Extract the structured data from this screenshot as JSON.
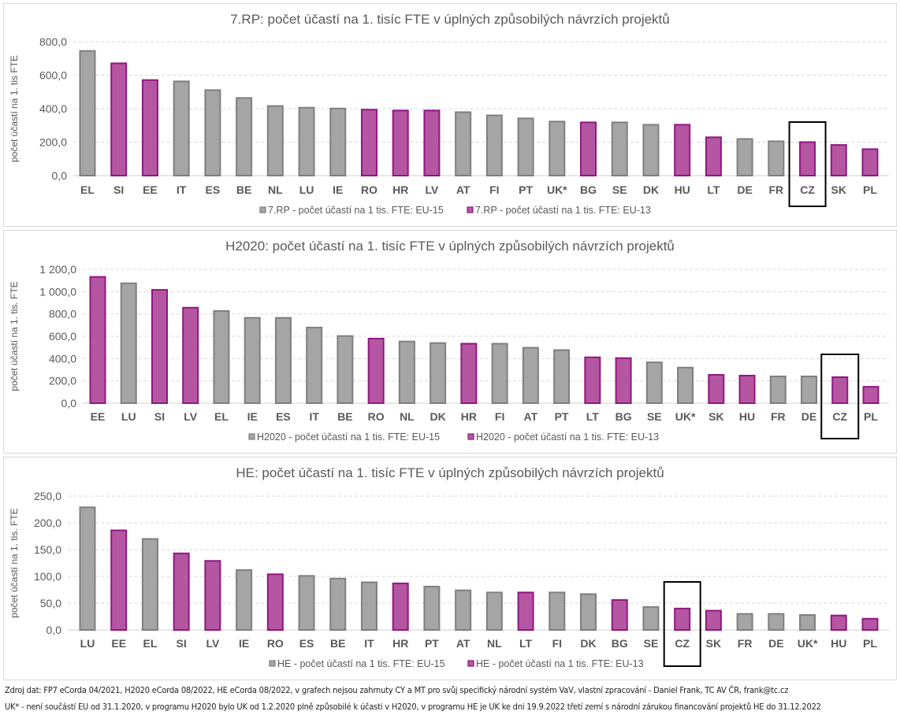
{
  "colors": {
    "eu15_fill": "#a5a5a5",
    "eu15_stroke": "#7f7f7f",
    "eu13_fill": "#b556a3",
    "eu13_stroke": "#91177f",
    "grid": "#d9d9d9",
    "text": "#595959",
    "highlight_box": "#000000"
  },
  "chart_data": [
    {
      "type": "bar",
      "title": "7.RP: počet účastí na 1. tisíc FTE v úplných způsobilých návrzích projektů",
      "xlabel": "",
      "ylabel": "počet účastí na 1. tis FTE",
      "ylim": [
        0,
        800
      ],
      "yticks": [
        0,
        200,
        400,
        600,
        800
      ],
      "ytick_labels": [
        "0,0",
        "200,0",
        "400,0",
        "600,0",
        "800,0"
      ],
      "grid": true,
      "legend_position": "bottom",
      "highlight": "CZ",
      "categories": [
        "EL",
        "SI",
        "EE",
        "IT",
        "ES",
        "BE",
        "NL",
        "LU",
        "IE",
        "RO",
        "HR",
        "LV",
        "AT",
        "FI",
        "PT",
        "UK*",
        "BG",
        "SE",
        "DK",
        "HU",
        "LT",
        "DE",
        "FR",
        "CZ",
        "SK",
        "PL"
      ],
      "groups": [
        "EU-15",
        "EU-13",
        "EU-13",
        "EU-15",
        "EU-15",
        "EU-15",
        "EU-15",
        "EU-15",
        "EU-15",
        "EU-13",
        "EU-13",
        "EU-13",
        "EU-15",
        "EU-15",
        "EU-15",
        "EU-15",
        "EU-13",
        "EU-15",
        "EU-15",
        "EU-13",
        "EU-13",
        "EU-15",
        "EU-15",
        "EU-13",
        "EU-13",
        "EU-13"
      ],
      "values": [
        745,
        671,
        571,
        563,
        511,
        464,
        416,
        406,
        401,
        394,
        389,
        389,
        379,
        360,
        342,
        323,
        318,
        318,
        304,
        304,
        229,
        219,
        205,
        200,
        183,
        158
      ],
      "series": [
        {
          "name": "7.RP - počet účastí na 1 tis. FTE: EU-15",
          "group": "EU-15"
        },
        {
          "name": "7.RP - počet účastí na 1 tis. FTE: EU-13",
          "group": "EU-13"
        }
      ]
    },
    {
      "type": "bar",
      "title": "H2020: počet účastí na 1. tisíc FTE v úplných způsobilých návrzích projektů",
      "xlabel": "",
      "ylabel": "počet účastí na 1. tis. FTE",
      "ylim": [
        0,
        1200
      ],
      "yticks": [
        0,
        200,
        400,
        600,
        800,
        1000,
        1200
      ],
      "ytick_labels": [
        "0,0",
        "200,0",
        "400,0",
        "600,0",
        "800,0",
        "1 000,0",
        "1 200,0"
      ],
      "grid": true,
      "legend_position": "bottom",
      "highlight": "CZ",
      "categories": [
        "EE",
        "LU",
        "SI",
        "LV",
        "EL",
        "IE",
        "ES",
        "IT",
        "BE",
        "RO",
        "NL",
        "DK",
        "HR",
        "FI",
        "AT",
        "PT",
        "LT",
        "BG",
        "SE",
        "UK*",
        "SK",
        "HU",
        "FR",
        "DE",
        "CZ",
        "PL"
      ],
      "groups": [
        "EU-13",
        "EU-15",
        "EU-13",
        "EU-13",
        "EU-15",
        "EU-15",
        "EU-15",
        "EU-15",
        "EU-15",
        "EU-13",
        "EU-15",
        "EU-15",
        "EU-13",
        "EU-15",
        "EU-15",
        "EU-15",
        "EU-13",
        "EU-13",
        "EU-15",
        "EU-15",
        "EU-13",
        "EU-13",
        "EU-15",
        "EU-15",
        "EU-13",
        "EU-13"
      ],
      "values": [
        1132,
        1075,
        1016,
        856,
        826,
        765,
        765,
        678,
        602,
        579,
        553,
        539,
        533,
        533,
        497,
        476,
        411,
        404,
        366,
        319,
        254,
        247,
        240,
        240,
        233,
        147
      ],
      "series": [
        {
          "name": "H2020 - počet účastí na 1 tis. FTE: EU-15",
          "group": "EU-15"
        },
        {
          "name": "H2020 - počet účastí na 1 tis. FTE: EU-13",
          "group": "EU-13"
        }
      ]
    },
    {
      "type": "bar",
      "title": "HE: počet účastí na 1. tisíc FTE v úplných způsobilých návrzích projektů",
      "xlabel": "",
      "ylabel": "počet účastí na 1. tis. FTE",
      "ylim": [
        0,
        250
      ],
      "yticks": [
        0,
        50,
        100,
        150,
        200,
        250
      ],
      "ytick_labels": [
        "0,0",
        "50,0",
        "100,0",
        "150,0",
        "200,0",
        "250,0"
      ],
      "grid": true,
      "legend_position": "bottom",
      "highlight": "CZ",
      "categories": [
        "LU",
        "EE",
        "EL",
        "SI",
        "LV",
        "IE",
        "RO",
        "ES",
        "BE",
        "IT",
        "HR",
        "PT",
        "AT",
        "NL",
        "LT",
        "FI",
        "DK",
        "BG",
        "SE",
        "CZ",
        "SK",
        "FR",
        "DE",
        "UK*",
        "HU",
        "PL"
      ],
      "groups": [
        "EU-15",
        "EU-13",
        "EU-15",
        "EU-13",
        "EU-13",
        "EU-15",
        "EU-13",
        "EU-15",
        "EU-15",
        "EU-15",
        "EU-13",
        "EU-15",
        "EU-15",
        "EU-15",
        "EU-13",
        "EU-15",
        "EU-15",
        "EU-13",
        "EU-15",
        "EU-13",
        "EU-13",
        "EU-15",
        "EU-15",
        "EU-15",
        "EU-13",
        "EU-13"
      ],
      "values": [
        229,
        186,
        170,
        143,
        129,
        112,
        104,
        101,
        96,
        89,
        87,
        81,
        74,
        70,
        70,
        70,
        67,
        56,
        43,
        40,
        36,
        30,
        30,
        28,
        27,
        21
      ],
      "series": [
        {
          "name": "HE - počet účastí na 1 tis. FTE: EU-15",
          "group": "EU-15"
        },
        {
          "name": "HE - počet účastí na 1 tis. FTE: EU-13",
          "group": "EU-13"
        }
      ]
    }
  ],
  "footer": {
    "source": "Zdroj dat: FP7 eCorda 04/2021, H2020 eCorda 08/2022, HE eCorda 08/2022,  v grafech nejsou zahrnuty CY a MT pro svůj specifický národní systém VaV, vlastní zpracování - Daniel Frank, TC AV ČR, frank@tc.cz",
    "note": "UK*  - není součástí EU od 31.1.2020, v programu H2020 bylo UK od 1.2.2020 plně způsobilé k účasti v H2020, v programu HE je UK ke dni 19.9.2022 třetí zemí s národní zárukou financování projektů HE do 31.12.2022"
  }
}
